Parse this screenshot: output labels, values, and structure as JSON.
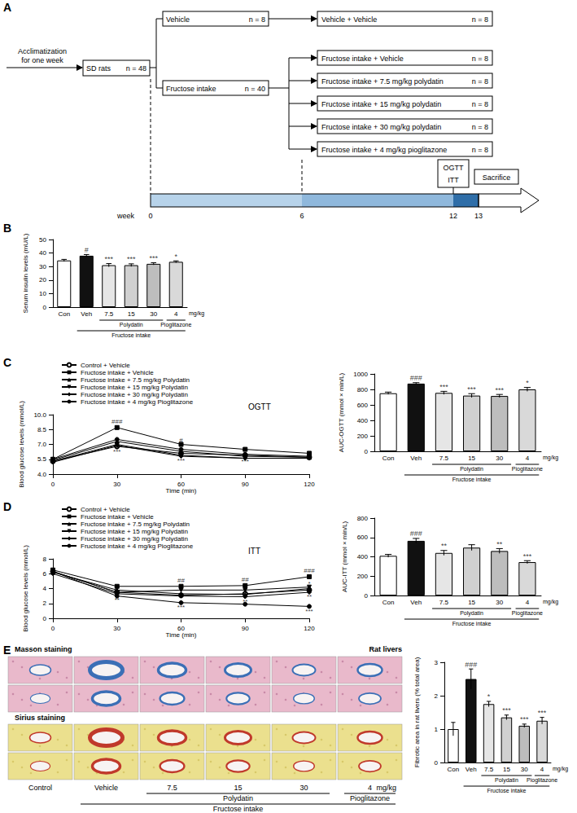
{
  "diagram": {
    "panel": "A",
    "start": [
      "Acclimatization",
      "for one week"
    ],
    "animals": {
      "label": "SD rats",
      "n": "n = 48"
    },
    "branches": [
      {
        "label": "Vehicle",
        "n": "n = 8",
        "groups": [
          {
            "label": "Vehicle + Vehicle",
            "n": "n = 8"
          }
        ]
      },
      {
        "label": "Fructose intake",
        "n": "n = 40",
        "groups": [
          {
            "label": "Fructose intake + Vehicle",
            "n": "n = 8"
          },
          {
            "label": "Fructose intake + 7.5 mg/kg polydatin",
            "n": "n = 8"
          },
          {
            "label": "Fructose intake + 15 mg/kg polydatin",
            "n": "n = 8"
          },
          {
            "label": "Fructose intake + 30 mg/kg polydatin",
            "n": "n = 8"
          },
          {
            "label": "Fructose intake + 4 mg/kg pioglitazone",
            "n": "n = 8"
          }
        ]
      }
    ],
    "tests": [
      "OGTT",
      "ITT"
    ],
    "end": "Sacrifice",
    "timeline": {
      "label": "week",
      "ticks": [
        0,
        6,
        12,
        13
      ]
    }
  },
  "chart_data": [
    {
      "panel": "B",
      "type": "bar",
      "y_label": "Serum insulin levels (mU/L)",
      "categories": [
        "Con",
        "Veh",
        "7.5",
        "15",
        "30",
        "4"
      ],
      "values": [
        34.5,
        38.0,
        31.0,
        31.0,
        32.0,
        33.5
      ],
      "errors": [
        0.8,
        0.9,
        1.2,
        1.0,
        0.8,
        0.7
      ],
      "marks": [
        null,
        "#",
        "***",
        "***",
        "***",
        "*"
      ],
      "colors": [
        "#ffffff",
        "#111111",
        "#e6e6e6",
        "#d0d0d0",
        "#bdbdbd",
        "#d9d9d9"
      ],
      "ylim": [
        0,
        50
      ],
      "yticks": [
        0,
        10,
        20,
        30,
        40,
        50
      ],
      "x_unit": "mg/kg",
      "groups": [
        {
          "label": "Polydatin",
          "from": "7.5",
          "to": "30"
        },
        {
          "label": "Pioglitazone",
          "from": "4",
          "to": "4"
        },
        {
          "label": "Fructose intake",
          "from": "Veh",
          "to": "4"
        }
      ],
      "grid": false
    },
    {
      "panel": "C",
      "type": "line",
      "title": "OGTT",
      "x_label": "Time (min)",
      "y_label": "Blood glucose levels (mmol/L)",
      "x": [
        0,
        30,
        60,
        90,
        120
      ],
      "xlim": [
        0,
        120
      ],
      "xticks": [
        0,
        30,
        60,
        90,
        120
      ],
      "ylim": [
        4,
        10
      ],
      "yticks": [
        {
          "value": 4,
          "label": "4.0"
        },
        5.5,
        {
          "value": 7,
          "label": "7.0"
        },
        8.5,
        {
          "value": 10,
          "label": "10.0"
        }
      ],
      "legend": "top-left",
      "grid": false,
      "series": [
        {
          "name": "Control + Vehicle",
          "color": "#000000",
          "marker": "open_circle",
          "line_style": "solid",
          "values": [
            5.3,
            6.8,
            6.1,
            5.9,
            5.7
          ]
        },
        {
          "name": "Fructose intake + Vehicle",
          "color": "#000000",
          "marker": "square",
          "line_style": "solid",
          "values": [
            5.5,
            8.7,
            7.0,
            6.5,
            6.1
          ]
        },
        {
          "name": "Fructose intake + 7.5 mg/kg Polydatin",
          "color": "#000000",
          "marker": "triangle",
          "line_style": "solid",
          "values": [
            5.4,
            7.3,
            6.3,
            5.8,
            5.7
          ]
        },
        {
          "name": "Fructose intake + 15 mg/kg Polydatin",
          "color": "#000000",
          "marker": "inverted_triangle",
          "line_style": "solid",
          "values": [
            5.3,
            7.0,
            5.9,
            5.6,
            5.6
          ]
        },
        {
          "name": "Fructose intake + 30 mg/kg Polydatin",
          "color": "#000000",
          "marker": "diamond",
          "line_style": "solid",
          "values": [
            5.2,
            6.9,
            5.8,
            5.6,
            5.6
          ]
        },
        {
          "name": "Fructose intake + 4 mg/kg Pioglitazone",
          "color": "#000000",
          "marker": "circle",
          "line_style": "solid",
          "values": [
            5.5,
            7.5,
            6.5,
            6.0,
            5.8
          ]
        }
      ],
      "annotations": [
        {
          "x": 30,
          "y": 9.3,
          "text": "###"
        },
        {
          "x": 60,
          "y": 7.45,
          "text": "#"
        },
        {
          "x": 30,
          "y": 6.3,
          "text": "***"
        },
        {
          "x": 60,
          "y": 5.35,
          "text": "***"
        },
        {
          "x": 90,
          "y": 6.35,
          "text": "**"
        },
        {
          "x": 90,
          "y": 5.25,
          "text": "***"
        }
      ]
    },
    {
      "type": "bar",
      "y_label": "AUC-OGTT (mmol × min/L)",
      "categories": [
        "Con",
        "Veh",
        "7.5",
        "15",
        "30",
        "4"
      ],
      "values": [
        750,
        875,
        755,
        720,
        715,
        800
      ],
      "errors": [
        15,
        12,
        20,
        25,
        20,
        25
      ],
      "marks": [
        null,
        "###",
        "***",
        "***",
        "***",
        "*"
      ],
      "colors": [
        "#ffffff",
        "#111111",
        "#e6e6e6",
        "#d0d0d0",
        "#bdbdbd",
        "#d9d9d9"
      ],
      "ylim": [
        0,
        1000
      ],
      "yticks": [
        0,
        200,
        400,
        600,
        800,
        1000
      ],
      "x_unit": "mg/kg",
      "groups": [
        {
          "label": "Polydatin",
          "from": "7.5",
          "to": "30"
        },
        {
          "label": "Pioglitazone",
          "from": "4",
          "to": "4"
        },
        {
          "label": "Fructose intake",
          "from": "Veh",
          "to": "4"
        }
      ],
      "grid": false
    },
    {
      "panel": "D",
      "type": "line",
      "title": "ITT",
      "x_label": "Time (min)",
      "y_label": "Blood glucose levels (mmol/L)",
      "x": [
        0,
        30,
        60,
        90,
        120
      ],
      "xlim": [
        0,
        120
      ],
      "xticks": [
        0,
        30,
        60,
        90,
        120
      ],
      "ylim": [
        0,
        8
      ],
      "yticks": [
        0,
        2,
        4,
        6,
        8
      ],
      "legend": "top-left",
      "grid": false,
      "series": [
        {
          "name": "Control + Vehicle",
          "color": "#000000",
          "marker": "open_circle",
          "line_style": "solid",
          "values": [
            6.3,
            3.5,
            3.1,
            3.3,
            3.8
          ]
        },
        {
          "name": "Fructose intake + Vehicle",
          "color": "#000000",
          "marker": "square",
          "line_style": "solid",
          "values": [
            6.5,
            4.3,
            4.3,
            4.4,
            5.6
          ]
        },
        {
          "name": "Fructose intake + 7.5 mg/kg Polydatin",
          "color": "#000000",
          "marker": "triangle",
          "line_style": "solid",
          "values": [
            6.2,
            3.8,
            3.3,
            3.2,
            4.0
          ]
        },
        {
          "name": "Fructose intake + 15 mg/kg Polydatin",
          "color": "#000000",
          "marker": "inverted_triangle",
          "line_style": "solid",
          "values": [
            6.3,
            3.5,
            3.8,
            3.8,
            4.2
          ]
        },
        {
          "name": "Fructose intake + 30 mg/kg Polydatin",
          "color": "#000000",
          "marker": "diamond",
          "line_style": "solid",
          "values": [
            6.0,
            3.3,
            3.0,
            2.9,
            3.5
          ]
        },
        {
          "name": "Fructose intake + 4 mg/kg Pioglitazone",
          "color": "#000000",
          "marker": "circle",
          "line_style": "solid",
          "values": [
            6.3,
            3.0,
            2.1,
            1.9,
            1.6
          ]
        }
      ],
      "annotations": [
        {
          "x": 60,
          "y": 5.1,
          "text": "##"
        },
        {
          "x": 90,
          "y": 5.2,
          "text": "##"
        },
        {
          "x": 120,
          "y": 6.4,
          "text": "###"
        },
        {
          "x": 30,
          "y": 2.5,
          "text": "**"
        },
        {
          "x": 60,
          "y": 1.5,
          "text": "***"
        },
        {
          "x": 90,
          "y": 2.3,
          "text": "**"
        },
        {
          "x": 120,
          "y": 4.7,
          "text": "*"
        },
        {
          "x": 120,
          "y": 2.9,
          "text": "**"
        },
        {
          "x": 120,
          "y": 0.9,
          "text": "***"
        }
      ]
    },
    {
      "type": "bar",
      "y_label": "AUC-ITT (mmol × min/L)",
      "categories": [
        "Con",
        "Veh",
        "7.5",
        "15",
        "30",
        "4"
      ],
      "values": [
        410,
        565,
        440,
        495,
        460,
        345
      ],
      "errors": [
        15,
        25,
        25,
        30,
        25,
        15
      ],
      "marks": [
        null,
        "###",
        "**",
        null,
        "**",
        "***"
      ],
      "colors": [
        "#ffffff",
        "#111111",
        "#e6e6e6",
        "#d0d0d0",
        "#bdbdbd",
        "#d9d9d9"
      ],
      "ylim": [
        0,
        800
      ],
      "yticks": [
        0,
        200,
        400,
        600,
        800
      ],
      "x_unit": "mg/kg",
      "groups": [
        {
          "label": "Polydatin",
          "from": "7.5",
          "to": "30"
        },
        {
          "label": "Pioglitazone",
          "from": "4",
          "to": "4"
        },
        {
          "label": "Fructose intake",
          "from": "Veh",
          "to": "4"
        }
      ],
      "grid": false
    },
    {
      "type": "bar",
      "y_label": "Fibrotic area in rat livers (% total area)",
      "categories": [
        "Con",
        "Veh",
        "7.5",
        "15",
        "30",
        "4"
      ],
      "values": [
        1.0,
        2.5,
        1.75,
        1.35,
        1.1,
        1.25
      ],
      "errors": [
        0.2,
        0.3,
        0.08,
        0.07,
        0.05,
        0.1
      ],
      "marks": [
        null,
        "###",
        "*",
        "***",
        "***",
        "***"
      ],
      "colors": [
        "#ffffff",
        "#111111",
        "#e6e6e6",
        "#d0d0d0",
        "#bdbdbd",
        "#d9d9d9"
      ],
      "ylim": [
        0,
        3
      ],
      "yticks": [
        0,
        1,
        2,
        3
      ],
      "x_unit": "mg/kg",
      "groups": [
        {
          "label": "Polydatin",
          "from": "7.5",
          "to": "30"
        },
        {
          "label": "Pioglitazone",
          "from": "4",
          "to": "4"
        },
        {
          "label": "Fructose intake",
          "from": "Veh",
          "to": "4"
        }
      ],
      "grid": false
    }
  ],
  "images": {
    "panel": "E",
    "rows": [
      {
        "title": "Masson staining",
        "side_label": "Rat livers"
      },
      {
        "title": "Sirius staining"
      }
    ],
    "columns": [
      "Control",
      "Vehicle",
      "7.5",
      "15",
      "30",
      "4"
    ],
    "unit": "mg/kg",
    "groups": [
      {
        "label": "Polydatin",
        "from": "7.5",
        "to": "30"
      },
      {
        "label": "Pioglitazone",
        "from": "4",
        "to": "4"
      },
      {
        "label": "Fructose intake",
        "from": "Vehicle",
        "to": "4"
      }
    ]
  }
}
